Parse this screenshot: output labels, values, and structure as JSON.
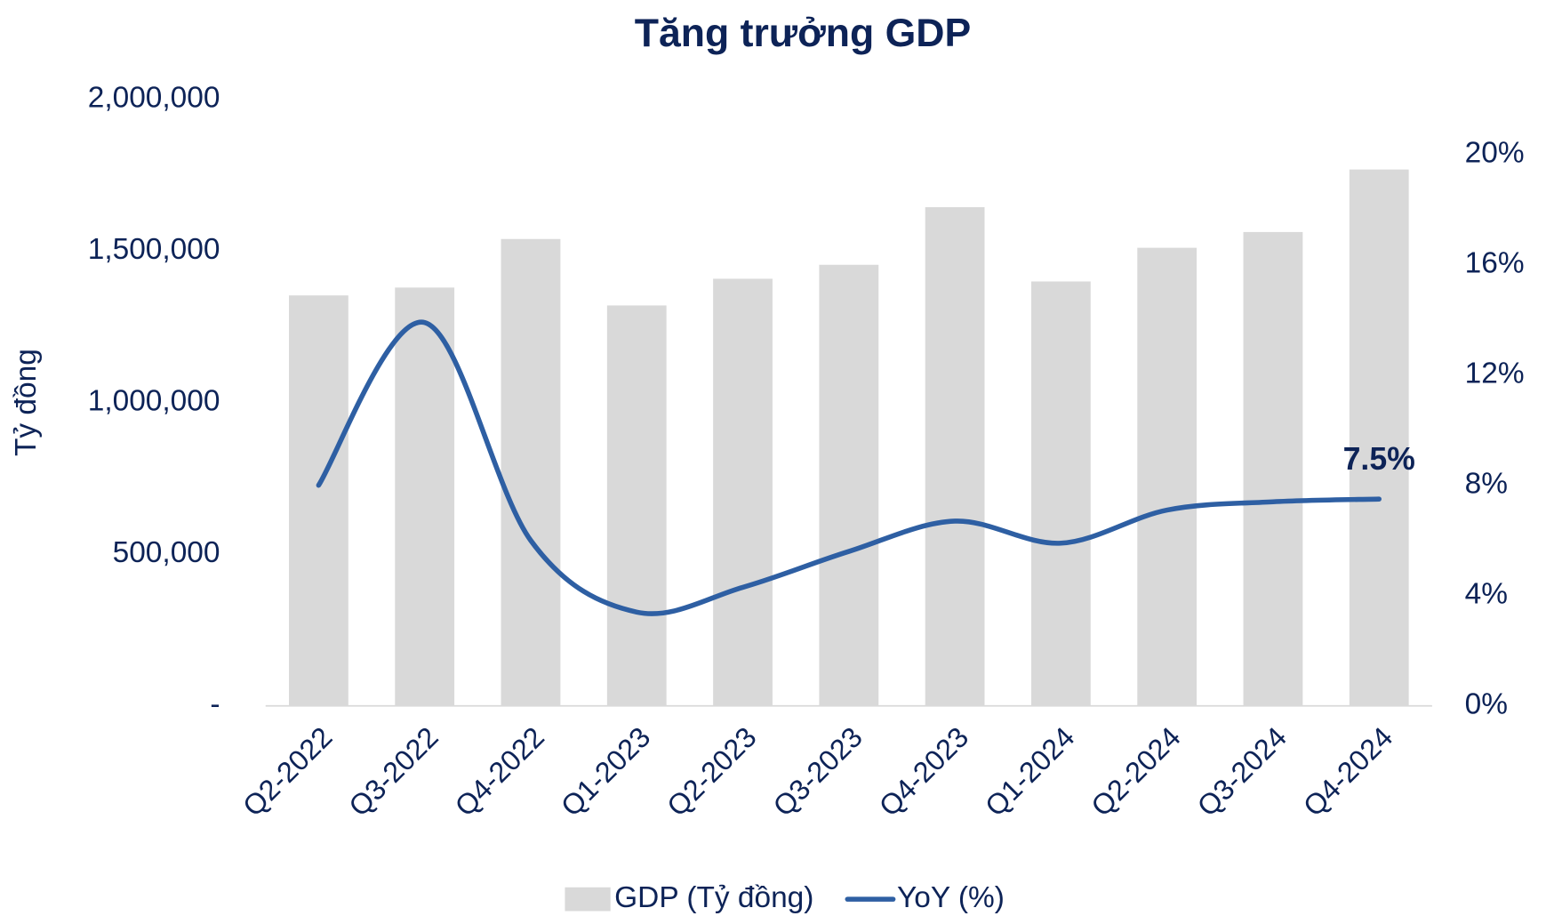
{
  "chart_data": {
    "type": "bar-line",
    "title": "Tăng trưởng GDP",
    "y_label": "Tỷ đồng",
    "categories": [
      "Q2-2022",
      "Q3-2022",
      "Q4-2022",
      "Q1-2023",
      "Q2-2023",
      "Q3-2023",
      "Q4-2023",
      "Q1-2024",
      "Q2-2024",
      "Q3-2024",
      "Q4-2024"
    ],
    "series": [
      {
        "name": "GDP (Tỷ đồng)",
        "type": "bar",
        "color": "#d9d9d9",
        "values": [
          1353000,
          1379000,
          1539000,
          1320000,
          1408000,
          1454000,
          1644000,
          1399000,
          1510000,
          1562000,
          1768000
        ]
      },
      {
        "name": "YoY (%)",
        "type": "line",
        "axis": "y2",
        "color": "#2e5fa3",
        "values": [
          8.0,
          13.9,
          6.0,
          3.4,
          4.3,
          5.6,
          6.7,
          5.9,
          7.1,
          7.4,
          7.5
        ],
        "value_labels": [
          null,
          null,
          null,
          null,
          null,
          null,
          null,
          null,
          null,
          null,
          "7.5%"
        ]
      }
    ],
    "ylim": [
      0,
      2000000
    ],
    "yticks": [
      {
        "value": 0,
        "label": "-"
      },
      {
        "value": 500000,
        "label": "500,000"
      },
      {
        "value": 1000000,
        "label": "1,000,000"
      },
      {
        "value": 1500000,
        "label": "1,500,000"
      },
      {
        "value": 2000000,
        "label": "2,000,000"
      }
    ],
    "y2lim": [
      0,
      22
    ],
    "y2ticks": [
      {
        "value": 0,
        "label": "0%"
      },
      {
        "value": 4,
        "label": "4%"
      },
      {
        "value": 8,
        "label": "8%"
      },
      {
        "value": 12,
        "label": "12%"
      },
      {
        "value": 16,
        "label": "16%"
      },
      {
        "value": 20,
        "label": "20%"
      }
    ],
    "legend": "bottom"
  }
}
